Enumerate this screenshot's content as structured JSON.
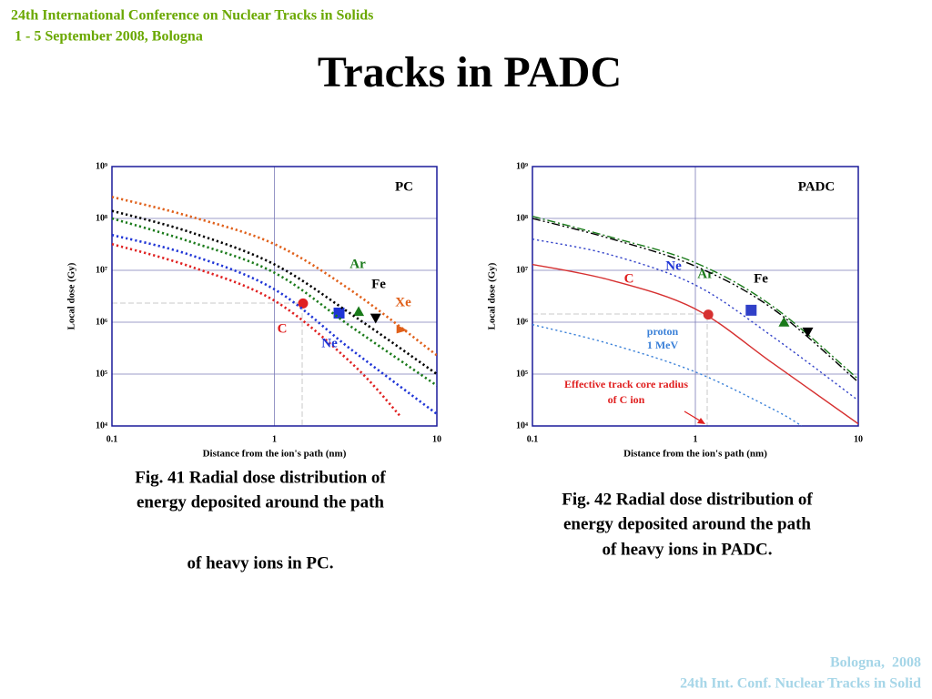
{
  "header": {
    "line1": "24th International Conference on Nuclear Tracks in Solids",
    "line2": " 1 - 5 September 2008, Bologna"
  },
  "title": "Tracks in PADC",
  "chart_data": [
    {
      "type": "line",
      "title": "PC",
      "log_x": true,
      "log_y": true,
      "grid": true,
      "xlabel": "Distance from the ion's path (nm)",
      "ylabel": "Local dose (Gy)",
      "xlim": [
        0.1,
        10
      ],
      "ylim": [
        10000,
        1000000000
      ],
      "xticks": [
        0.1,
        1,
        10
      ],
      "yticks": [
        {
          "value": 10000,
          "label": "10⁴"
        },
        {
          "value": 100000,
          "label": "10⁵"
        },
        {
          "value": 1000000,
          "label": "10⁶"
        },
        {
          "value": 10000000,
          "label": "10⁷"
        },
        {
          "value": 100000000,
          "label": "10⁸"
        },
        {
          "value": 1000000000,
          "label": "10⁹"
        }
      ],
      "series": [
        {
          "name": "C",
          "color": "#e02020",
          "dash": "dotted",
          "x": [
            0.1,
            0.3,
            1,
            3,
            6
          ],
          "values": [
            32000000,
            12000000,
            2600000,
            160000,
            15000
          ],
          "marker": {
            "shape": "circle",
            "x": 1.5,
            "y": 2300000
          }
        },
        {
          "name": "Ne",
          "color": "#1f35d6",
          "dash": "dotted",
          "x": [
            0.1,
            0.3,
            1,
            3,
            10
          ],
          "values": [
            48000000,
            20000000,
            4300000,
            290000,
            17000
          ],
          "marker": {
            "shape": "square",
            "x": 2.5,
            "y": 1500000
          }
        },
        {
          "name": "Ar",
          "color": "#1a7a1a",
          "dash": "dotted",
          "x": [
            0.1,
            0.3,
            1,
            3,
            10
          ],
          "values": [
            100000000,
            36000000,
            9000000,
            800000,
            60000
          ],
          "marker": {
            "shape": "triangle-up",
            "x": 3.3,
            "y": 1600000
          }
        },
        {
          "name": "Fe",
          "color": "#000000",
          "dash": "dotted",
          "x": [
            0.1,
            0.3,
            1,
            3,
            10
          ],
          "values": [
            140000000,
            55000000,
            13000000,
            1400000,
            100000
          ],
          "marker": {
            "shape": "triangle-down",
            "x": 4.2,
            "y": 1200000
          }
        },
        {
          "name": "Xe",
          "color": "#e0601a",
          "dash": "dotted",
          "x": [
            0.1,
            0.3,
            1,
            3,
            10
          ],
          "values": [
            260000000,
            110000000,
            32000000,
            4000000,
            230000
          ],
          "marker": {
            "shape": "triangle-right",
            "x": 6.1,
            "y": 700000
          }
        }
      ]
    },
    {
      "type": "line",
      "title": "PADC",
      "log_x": true,
      "log_y": true,
      "grid": true,
      "xlabel": "Distance from the ion's path (nm)",
      "ylabel": "Local dose (Gy)",
      "xlim": [
        0.1,
        10
      ],
      "ylim": [
        10000,
        1000000000
      ],
      "xticks": [
        0.1,
        1,
        10
      ],
      "yticks": [
        {
          "value": 10000,
          "label": "10⁴"
        },
        {
          "value": 100000,
          "label": "10⁵"
        },
        {
          "value": 1000000,
          "label": "10⁶"
        },
        {
          "value": 10000000,
          "label": "10⁷"
        },
        {
          "value": 100000000,
          "label": "10⁸"
        },
        {
          "value": 1000000000,
          "label": "10⁹"
        }
      ],
      "series": [
        {
          "name": "C",
          "color": "#d63030",
          "dash": "solid",
          "x": [
            0.1,
            0.3,
            1,
            3,
            10
          ],
          "values": [
            13000000,
            6500000,
            1800000,
            160000,
            11000
          ],
          "marker": {
            "shape": "circle",
            "x": 1.2,
            "y": 1400000
          }
        },
        {
          "name": "Ne",
          "color": "#3040c8",
          "dash": "dotted",
          "x": [
            0.1,
            0.3,
            1,
            3,
            10
          ],
          "values": [
            40000000,
            20000000,
            5200000,
            520000,
            31000
          ],
          "marker": {
            "shape": "square",
            "x": 2.2,
            "y": 1700000
          }
        },
        {
          "name": "Ar",
          "color": "#1a7a1a",
          "dash": "dash-dot",
          "x": [
            0.1,
            0.3,
            1,
            3,
            10
          ],
          "values": [
            110000000,
            44000000,
            14000000,
            2000000,
            80000
          ],
          "marker": {
            "shape": "triangle-up",
            "x": 3.5,
            "y": 1000000
          }
        },
        {
          "name": "Fe",
          "color": "#000000",
          "dash": "dash-dot-dot",
          "x": [
            0.1,
            0.3,
            1,
            3,
            10
          ],
          "values": [
            100000000,
            41000000,
            12000000,
            1800000,
            70000
          ],
          "marker": {
            "shape": "triangle-down",
            "x": 4.9,
            "y": 650000
          }
        },
        {
          "name": "proton",
          "energy": "1 MeV",
          "color": "#3a80d8",
          "dash": "dotted",
          "x": [
            0.1,
            0.3,
            1,
            3,
            4.5
          ],
          "values": [
            900000,
            380000,
            110000,
            21000,
            10000
          ]
        }
      ],
      "annotation": {
        "line1": "Effective track core radius",
        "line2": "of C ion"
      }
    }
  ],
  "captions": [
    [
      "Fig. 41 Radial dose distribution of",
      "energy deposited around the path",
      "of heavy ions in PC."
    ],
    [
      "Fig. 42 Radial dose distribution of",
      "energy deposited around the path",
      "of heavy ions in PADC."
    ]
  ],
  "footer": {
    "line1": "Bologna,  2008",
    "line2": "24th Int. Conf. Nuclear Tracks in Solid"
  }
}
